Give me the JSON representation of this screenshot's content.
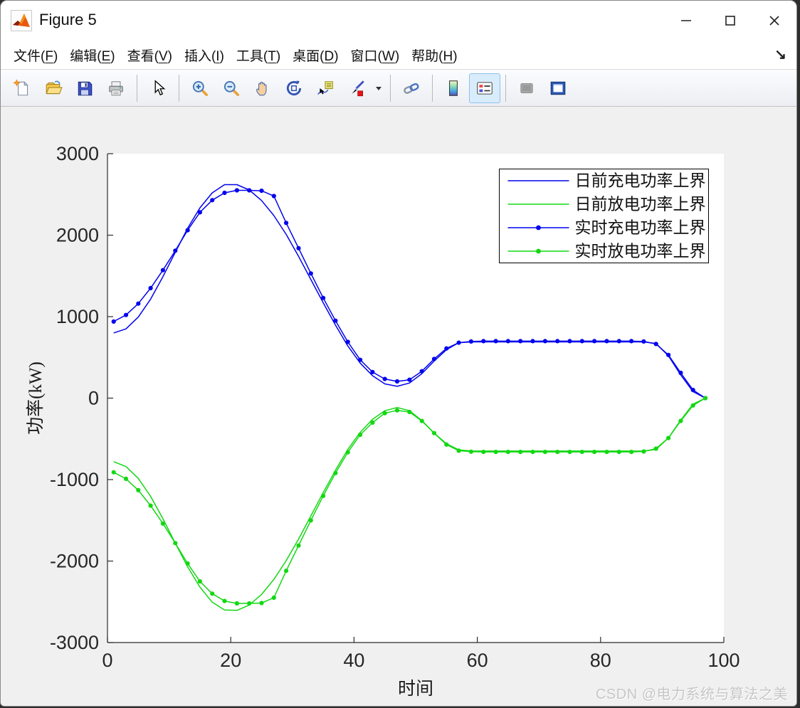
{
  "window": {
    "title": "Figure 5",
    "controls": [
      {
        "id": "minimize",
        "glyph": "minimize"
      },
      {
        "id": "maximize",
        "glyph": "maximize"
      },
      {
        "id": "close",
        "glyph": "close"
      }
    ]
  },
  "menu": {
    "items": [
      {
        "id": "file",
        "label": "文件",
        "key": "F"
      },
      {
        "id": "edit",
        "label": "编辑",
        "key": "E"
      },
      {
        "id": "view",
        "label": "查看",
        "key": "V"
      },
      {
        "id": "insert",
        "label": "插入",
        "key": "I"
      },
      {
        "id": "tools",
        "label": "工具",
        "key": "T"
      },
      {
        "id": "desktop",
        "label": "桌面",
        "key": "D"
      },
      {
        "id": "window",
        "label": "窗口",
        "key": "W"
      },
      {
        "id": "help",
        "label": "帮助",
        "key": "H"
      }
    ],
    "dock_arrow": "↘"
  },
  "toolbar": {
    "buttons": [
      {
        "id": "new-figure",
        "icon": "new-document"
      },
      {
        "id": "open-file",
        "icon": "open-folder"
      },
      {
        "id": "save-figure",
        "icon": "save"
      },
      {
        "id": "print-figure",
        "icon": "printer"
      },
      {
        "sep": true
      },
      {
        "id": "edit-plot",
        "icon": "pointer"
      },
      {
        "sep": true
      },
      {
        "id": "zoom-in",
        "icon": "zoom-in"
      },
      {
        "id": "zoom-out",
        "icon": "zoom-out"
      },
      {
        "id": "pan",
        "icon": "hand"
      },
      {
        "id": "rotate-3d",
        "icon": "rotate-3d"
      },
      {
        "id": "data-cursor",
        "icon": "datatip"
      },
      {
        "id": "brush-data",
        "icon": "brush"
      },
      {
        "id": "brush-dropdown",
        "icon": "caret-down",
        "small": true
      },
      {
        "sep": true
      },
      {
        "id": "link-plot",
        "icon": "link"
      },
      {
        "sep": true
      },
      {
        "id": "insert-colorbar",
        "icon": "colorbar"
      },
      {
        "id": "insert-legend",
        "icon": "legend",
        "active": true
      },
      {
        "sep": true
      },
      {
        "id": "hide-plot-tools",
        "icon": "plot-tools-gray"
      },
      {
        "id": "show-plot-tools-dock",
        "icon": "dock-window"
      }
    ]
  },
  "watermark": "CSDN @电力系统与算法之美",
  "chart_data": {
    "type": "line",
    "xlabel": "时间",
    "ylabel": "功率(kW)",
    "xlim": [
      0,
      100
    ],
    "ylim": [
      -3000,
      3000
    ],
    "xticks": [
      0,
      20,
      40,
      60,
      80,
      100
    ],
    "yticks": [
      -3000,
      -2000,
      -1000,
      0,
      1000,
      2000,
      3000
    ],
    "grid": false,
    "legend_position": "top-right",
    "x": [
      1,
      3,
      5,
      7,
      9,
      11,
      13,
      15,
      17,
      19,
      21,
      23,
      25,
      27,
      29,
      31,
      33,
      35,
      37,
      39,
      41,
      43,
      45,
      47,
      49,
      51,
      53,
      55,
      57,
      59,
      61,
      63,
      65,
      67,
      69,
      71,
      73,
      75,
      77,
      79,
      81,
      83,
      85,
      87,
      89,
      91,
      93,
      95,
      97
    ],
    "series": [
      {
        "name": "日前充电功率上界",
        "color": "#0202ee",
        "marker": false,
        "values": [
          800,
          850,
          995,
          1215,
          1490,
          1790,
          2085,
          2335,
          2520,
          2620,
          2620,
          2555,
          2425,
          2240,
          2010,
          1740,
          1455,
          1170,
          895,
          640,
          430,
          275,
          175,
          145,
          185,
          300,
          455,
          595,
          680,
          690,
          690,
          690,
          690,
          690,
          690,
          690,
          690,
          690,
          690,
          690,
          690,
          690,
          690,
          690,
          670,
          520,
          285,
          80,
          0
        ]
      },
      {
        "name": "日前放电功率上界",
        "color": "#12d812",
        "marker": false,
        "values": [
          -780,
          -840,
          -985,
          -1205,
          -1480,
          -1780,
          -2070,
          -2320,
          -2505,
          -2600,
          -2605,
          -2540,
          -2410,
          -2225,
          -1995,
          -1730,
          -1445,
          -1160,
          -885,
          -630,
          -420,
          -260,
          -155,
          -115,
          -155,
          -275,
          -430,
          -560,
          -635,
          -648,
          -650,
          -650,
          -650,
          -650,
          -650,
          -650,
          -650,
          -650,
          -650,
          -650,
          -650,
          -650,
          -650,
          -650,
          -630,
          -490,
          -270,
          -75,
          0
        ]
      },
      {
        "name": "实时充电功率上界",
        "color": "#0202ee",
        "marker": true,
        "values": [
          940,
          1020,
          1160,
          1350,
          1570,
          1810,
          2060,
          2280,
          2430,
          2520,
          2550,
          2550,
          2545,
          2480,
          2150,
          1840,
          1530,
          1230,
          950,
          690,
          470,
          320,
          235,
          205,
          225,
          330,
          480,
          610,
          680,
          695,
          700,
          700,
          700,
          700,
          700,
          700,
          700,
          700,
          700,
          700,
          700,
          700,
          700,
          695,
          665,
          530,
          310,
          100,
          0
        ]
      },
      {
        "name": "实时放电功率上界",
        "color": "#12d812",
        "marker": true,
        "values": [
          -910,
          -990,
          -1130,
          -1320,
          -1540,
          -1780,
          -2030,
          -2250,
          -2400,
          -2490,
          -2520,
          -2520,
          -2515,
          -2450,
          -2120,
          -1810,
          -1500,
          -1200,
          -920,
          -665,
          -450,
          -300,
          -185,
          -150,
          -170,
          -280,
          -430,
          -570,
          -645,
          -658,
          -660,
          -660,
          -660,
          -660,
          -660,
          -660,
          -660,
          -660,
          -660,
          -660,
          -660,
          -660,
          -660,
          -655,
          -620,
          -490,
          -280,
          -90,
          0
        ]
      }
    ]
  }
}
